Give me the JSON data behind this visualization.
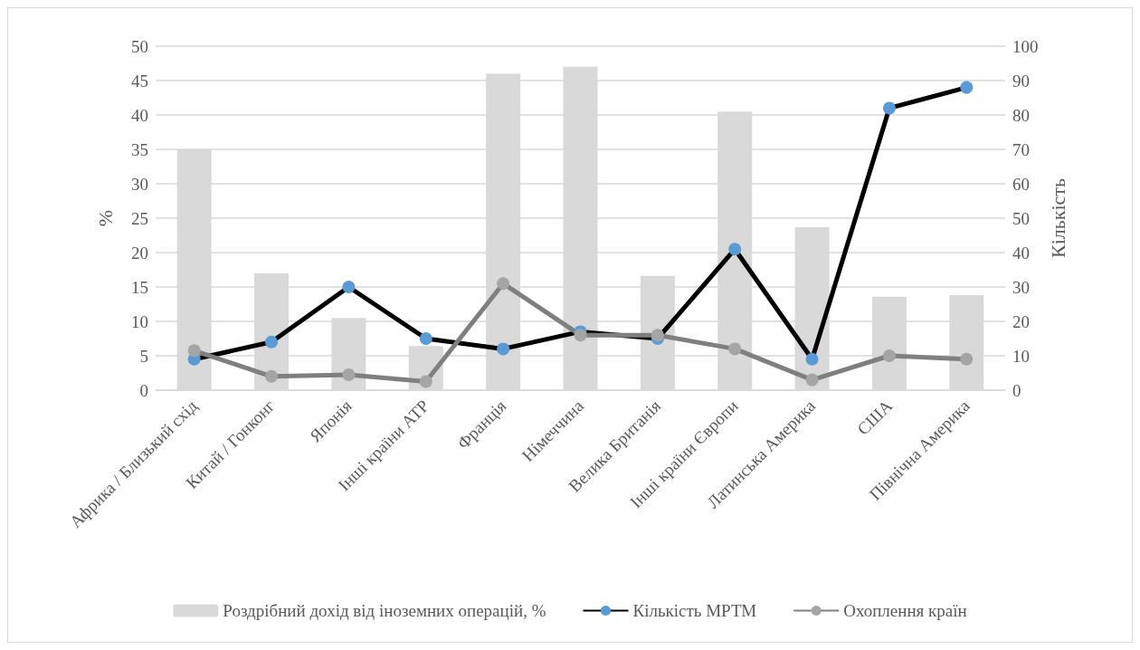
{
  "chart_data": {
    "type": "bar",
    "ylabel": "%",
    "y2label": "Кількість",
    "categories": [
      "Африка / Близький схід",
      "Китай / Гонконг",
      "Японія",
      "Інші країни АТР",
      "Франція",
      "Німеччина",
      "Велика Британія",
      "Інші країни Європи",
      "Латинська Америка",
      "США",
      "Північна Америка"
    ],
    "series": [
      {
        "name": "Роздрібний дохід від іноземних операцій, %",
        "color": "#d9d9d9",
        "values": [
          35,
          17,
          10.5,
          6.4,
          46,
          47,
          16.6,
          40.5,
          23.7,
          13.6,
          13.8
        ]
      },
      {
        "name": "Кількість МРТМ",
        "type": "line",
        "axis": "y2",
        "color": "#000000",
        "colors": [
          "#5b9bd5",
          "#5b9bd5",
          "#5b9bd5",
          "#5b9bd5",
          "#5b9bd5",
          "#5b9bd5",
          "#5b9bd5",
          "#5b9bd5",
          "#5b9bd5",
          "#5b9bd5",
          "#5b9bd5"
        ],
        "values": [
          9,
          14,
          30,
          15,
          12,
          17,
          15,
          41,
          9,
          82,
          88
        ]
      },
      {
        "name": "Охоплення країн",
        "type": "line",
        "axis": "y2",
        "color": "#7f7f7f",
        "colors": [
          "#a5a5a5",
          "#a5a5a5",
          "#a5a5a5",
          "#a5a5a5",
          "#a5a5a5",
          "#a5a5a5",
          "#a5a5a5",
          "#a5a5a5",
          "#a5a5a5",
          "#a5a5a5",
          "#a5a5a5"
        ],
        "values": [
          11.5,
          4,
          4.5,
          2.5,
          31,
          16,
          16,
          12,
          3,
          10,
          9
        ]
      }
    ],
    "ylim": [
      0,
      50
    ],
    "yticks": [
      0,
      5,
      10,
      15,
      20,
      25,
      30,
      35,
      40,
      45,
      50
    ],
    "y2lim": [
      0,
      100
    ],
    "y2ticks": [
      0,
      10,
      20,
      30,
      40,
      50,
      60,
      70,
      80,
      90,
      100
    ],
    "grid": "y",
    "legend": "bottom",
    "marker": "circle",
    "line_style": "solid"
  }
}
